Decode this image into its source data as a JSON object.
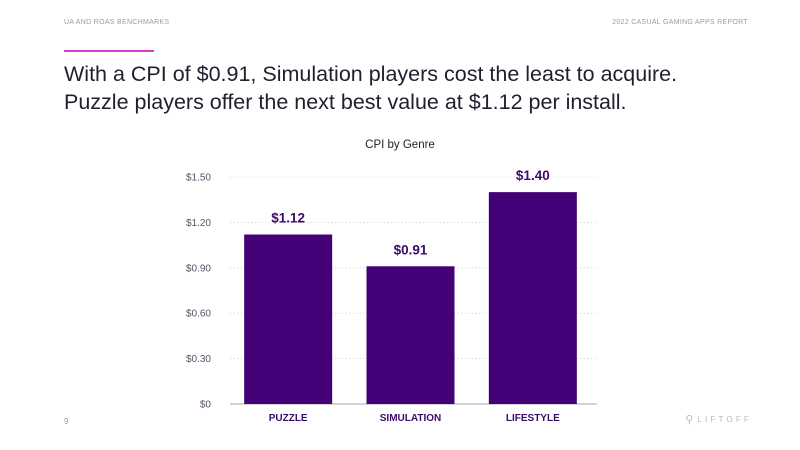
{
  "header": {
    "left": "UA AND ROAS BENCHMARKS",
    "right": "2022 CASUAL GAMING APPS REPORT"
  },
  "accent_color": "#d63bd8",
  "headline": {
    "line1": "With a CPI of $0.91, Simulation players cost the least to acquire.",
    "line2": "Puzzle players offer the next best value at $1.12 per install."
  },
  "chart_data": {
    "type": "bar",
    "title": "CPI by Genre",
    "categories": [
      "PUZZLE",
      "SIMULATION",
      "LIFESTYLE"
    ],
    "values": [
      1.12,
      0.91,
      1.4
    ],
    "value_labels": [
      "$1.12",
      "$0.91",
      "$1.40"
    ],
    "yticks": [
      0,
      0.3,
      0.6,
      0.9,
      1.2,
      1.5
    ],
    "ytick_labels": [
      "$0",
      "$0.30",
      "$0.60",
      "$0.90",
      "$1.20",
      "$1.50"
    ],
    "ylim": [
      0,
      1.5
    ],
    "grid": true,
    "bar_color": "#440077",
    "label_color": "#3d0b6b"
  },
  "footer": {
    "page_number": "9",
    "logo_mark": "⚲",
    "logo_text": "LIFTOFF"
  }
}
